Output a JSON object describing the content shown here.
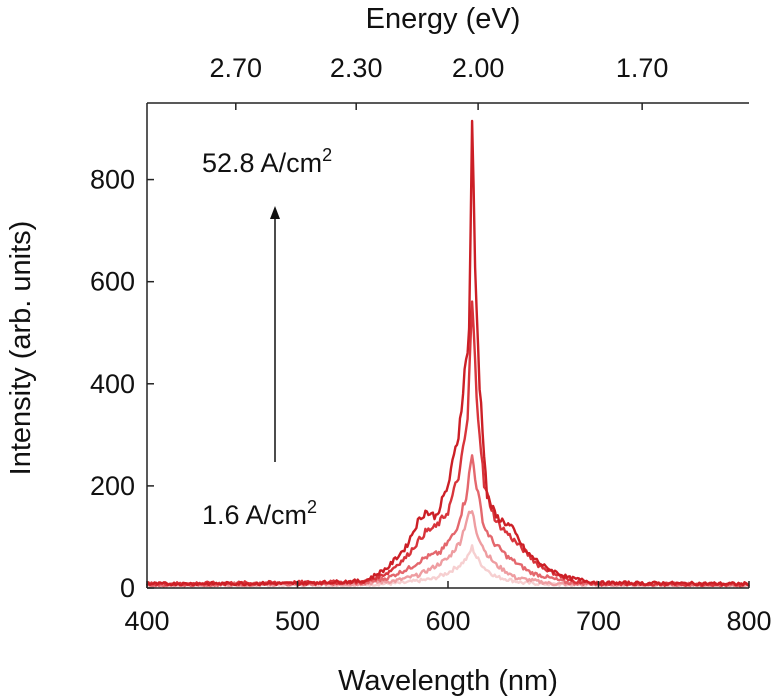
{
  "chart_data": {
    "type": "line",
    "xlabel": "Wavelength (nm)",
    "ylabel": "Intensity (arb. units)",
    "top_axis_label": "Energy (eV)",
    "xlim": [
      400,
      800
    ],
    "ylim": [
      0,
      950
    ],
    "x_ticks": [
      400,
      500,
      600,
      700,
      800
    ],
    "y_ticks": [
      0,
      200,
      400,
      600,
      800
    ],
    "top_ticks": [
      {
        "label": "2.70",
        "wavelength": 459
      },
      {
        "label": "2.30",
        "wavelength": 539
      },
      {
        "label": "2.00",
        "wavelength": 620
      },
      {
        "label": "1.70",
        "wavelength": 729
      }
    ],
    "grid": false,
    "annotations": {
      "high_label": "52.8 A/cm",
      "high_sup": "2",
      "low_label": "1.6 A/cm",
      "low_sup": "2"
    },
    "series": [
      {
        "color": "#f6cfd0",
        "points": [
          [
            400,
            5
          ],
          [
            540,
            6
          ],
          [
            570,
            10
          ],
          [
            590,
            18
          ],
          [
            600,
            30
          ],
          [
            608,
            45
          ],
          [
            613,
            60
          ],
          [
            616,
            80
          ],
          [
            619,
            60
          ],
          [
            624,
            40
          ],
          [
            632,
            22
          ],
          [
            650,
            10
          ],
          [
            680,
            6
          ],
          [
            800,
            5
          ]
        ]
      },
      {
        "color": "#ee9da1",
        "points": [
          [
            400,
            6
          ],
          [
            540,
            8
          ],
          [
            565,
            14
          ],
          [
            580,
            25
          ],
          [
            590,
            40
          ],
          [
            600,
            58
          ],
          [
            608,
            90
          ],
          [
            613,
            140
          ],
          [
            616,
            150
          ],
          [
            619,
            110
          ],
          [
            625,
            70
          ],
          [
            632,
            45
          ],
          [
            645,
            20
          ],
          [
            670,
            8
          ],
          [
            800,
            6
          ]
        ]
      },
      {
        "color": "#e4676d",
        "points": [
          [
            400,
            6
          ],
          [
            545,
            10
          ],
          [
            560,
            20
          ],
          [
            575,
            40
          ],
          [
            585,
            60
          ],
          [
            595,
            70
          ],
          [
            605,
            110
          ],
          [
            612,
            180
          ],
          [
            616,
            260
          ],
          [
            619,
            200
          ],
          [
            624,
            120
          ],
          [
            630,
            90
          ],
          [
            640,
            60
          ],
          [
            655,
            30
          ],
          [
            680,
            10
          ],
          [
            800,
            6
          ]
        ]
      },
      {
        "color": "#d8343b",
        "points": [
          [
            400,
            8
          ],
          [
            545,
            12
          ],
          [
            560,
            30
          ],
          [
            572,
            60
          ],
          [
            585,
            110
          ],
          [
            592,
            120
          ],
          [
            600,
            150
          ],
          [
            608,
            230
          ],
          [
            613,
            330
          ],
          [
            616,
            560
          ],
          [
            619,
            380
          ],
          [
            624,
            200
          ],
          [
            632,
            130
          ],
          [
            645,
            90
          ],
          [
            660,
            45
          ],
          [
            680,
            15
          ],
          [
            700,
            8
          ],
          [
            800,
            7
          ]
        ]
      },
      {
        "color": "#cc1f26",
        "points": [
          [
            400,
            8
          ],
          [
            500,
            9
          ],
          [
            545,
            14
          ],
          [
            560,
            40
          ],
          [
            572,
            80
          ],
          [
            580,
            130
          ],
          [
            585,
            150
          ],
          [
            592,
            140
          ],
          [
            600,
            200
          ],
          [
            607,
            300
          ],
          [
            611,
            420
          ],
          [
            614,
            500
          ],
          [
            616,
            920
          ],
          [
            618,
            620
          ],
          [
            621,
            400
          ],
          [
            626,
            180
          ],
          [
            632,
            140
          ],
          [
            642,
            120
          ],
          [
            652,
            70
          ],
          [
            665,
            40
          ],
          [
            680,
            20
          ],
          [
            700,
            10
          ],
          [
            800,
            8
          ]
        ]
      }
    ]
  }
}
